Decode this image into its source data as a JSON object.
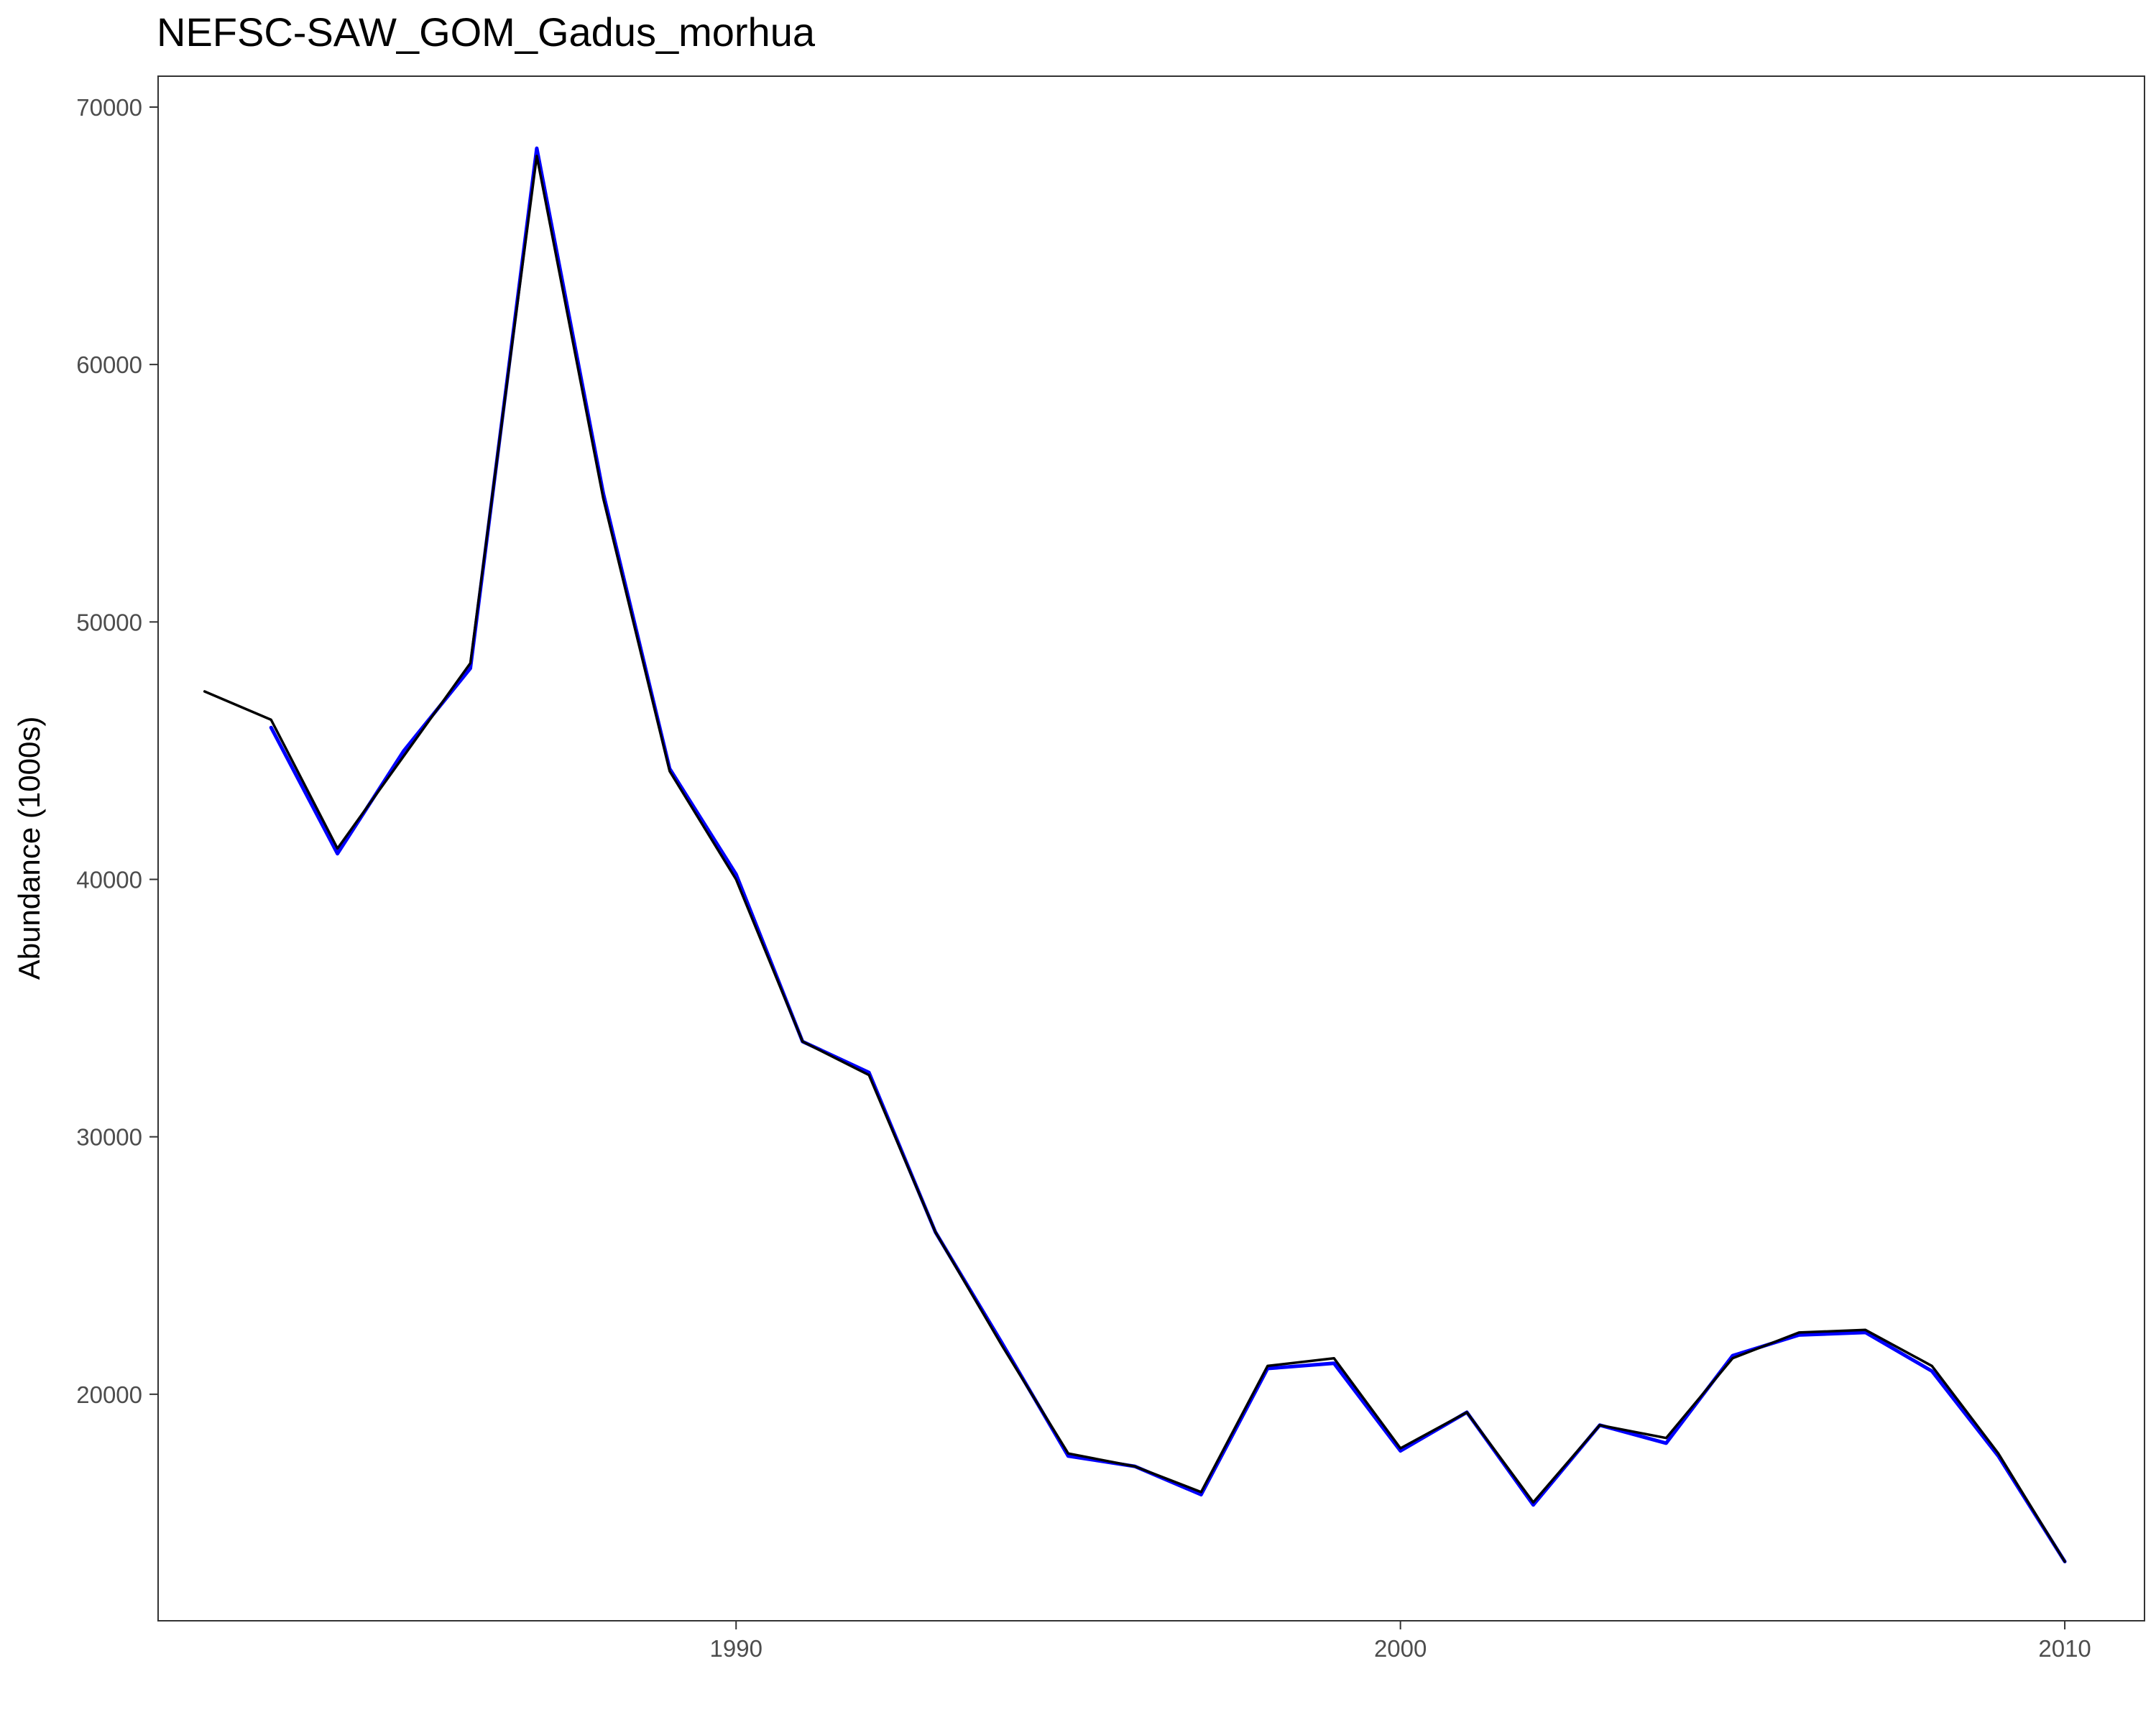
{
  "chart_data": {
    "type": "line",
    "title": "NEFSC-SAW_GOM_Gadus_morhua",
    "xlabel": "",
    "ylabel": "Abundance (1000s)",
    "xlim": [
      1981.3,
      2011.2
    ],
    "ylim": [
      11200,
      71200
    ],
    "x_ticks": [
      1990,
      2000,
      2010
    ],
    "y_ticks": [
      20000,
      30000,
      40000,
      50000,
      60000,
      70000
    ],
    "grid": false,
    "legend": "none",
    "series": [
      {
        "color": "#0000ff",
        "x": [
          1983,
          1984,
          1985,
          1986,
          1987,
          1988,
          1989,
          1990,
          1991,
          1992,
          1993,
          1994,
          1995,
          1996,
          1997,
          1998,
          1999,
          2000,
          2001,
          2002,
          2003,
          2004,
          2005,
          2006,
          2007,
          2008,
          2009,
          2010
        ],
        "y": [
          45900,
          41000,
          45000,
          48200,
          68400,
          55000,
          44300,
          40200,
          33700,
          32500,
          26300,
          22000,
          17600,
          17200,
          16100,
          21000,
          21200,
          17800,
          19300,
          15700,
          18800,
          18100,
          21500,
          22300,
          22400,
          20900,
          17600,
          13500
        ]
      },
      {
        "color": "#000000",
        "x": [
          1982,
          1983,
          1984,
          1985,
          1986,
          1987,
          1988,
          1989,
          1990,
          1991,
          1992,
          1993,
          1994,
          1995,
          1996,
          1997,
          1998,
          1999,
          2000,
          2001,
          2002,
          2003,
          2004,
          2005,
          2006,
          2007,
          2008,
          2009,
          2010
        ],
        "y": [
          47300,
          46200,
          41200,
          44800,
          48400,
          68100,
          54800,
          44200,
          40000,
          33700,
          32400,
          26300,
          21900,
          17700,
          17200,
          16200,
          21100,
          21400,
          17900,
          19300,
          15800,
          18800,
          18300,
          21400,
          22400,
          22500,
          21100,
          17700,
          13500
        ]
      }
    ]
  }
}
